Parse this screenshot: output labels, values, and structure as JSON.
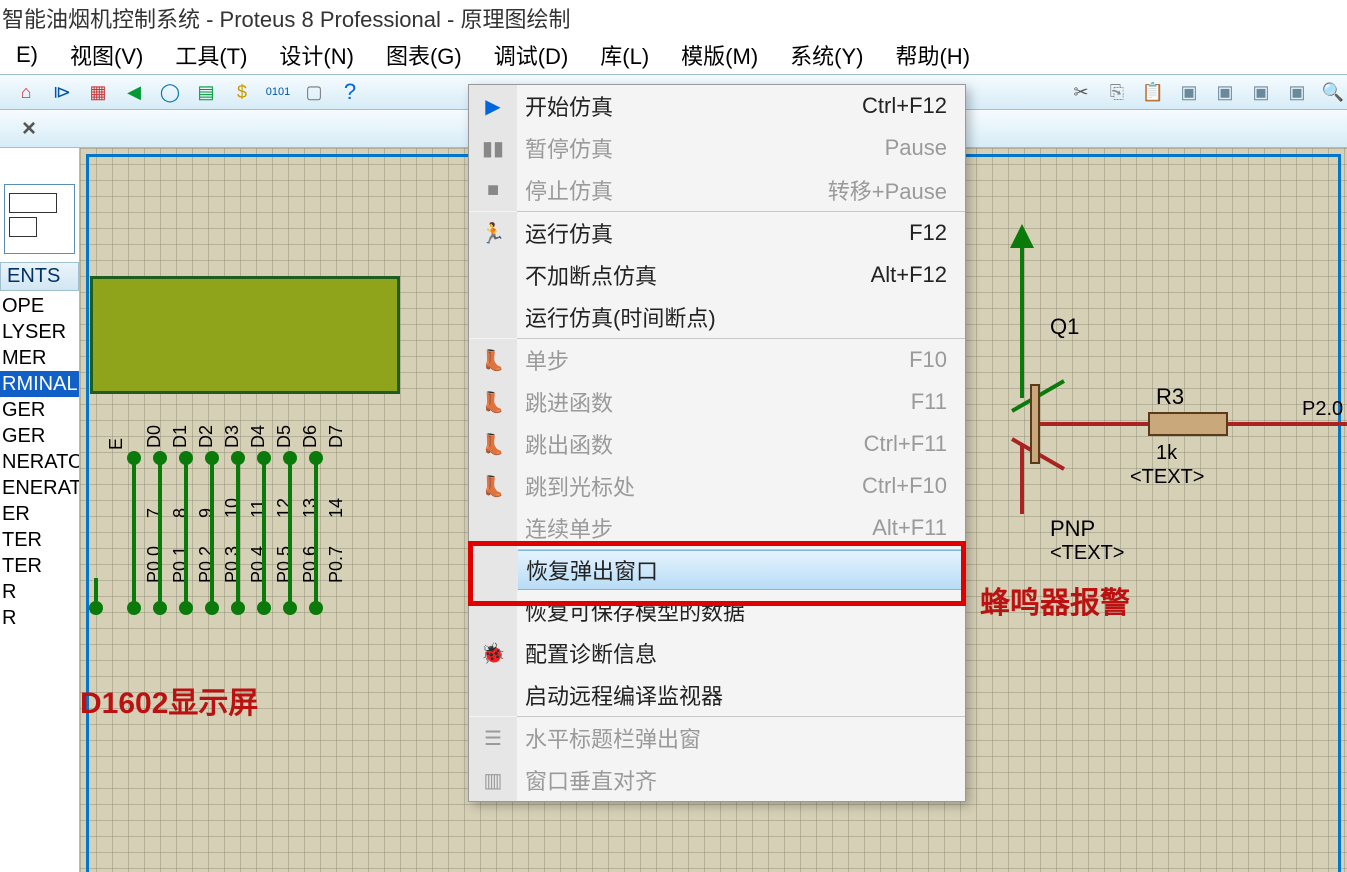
{
  "title": "智能油烟机控制系统 - Proteus 8 Professional - 原理图绘制",
  "menu": {
    "items": [
      "E)",
      "视图(V)",
      "工具(T)",
      "设计(N)",
      "图表(G)",
      "调试(D)",
      "库(L)",
      "模版(M)",
      "系统(Y)",
      "帮助(H)"
    ],
    "active_index": 5
  },
  "toolbar": {
    "left_icons": [
      "home-icon",
      "diode-icon",
      "chip-icon",
      "flag-icon",
      "globe-icon",
      "sheet-icon",
      "dollar-icon",
      "binary-icon",
      "page-icon",
      "help-icon"
    ],
    "right_icons": [
      "cut-icon",
      "copy-icon",
      "paste-icon",
      "block1-icon",
      "block2-icon",
      "block3-icon",
      "block4-icon",
      "zoom-icon"
    ]
  },
  "tab": {
    "close": "×"
  },
  "side": {
    "header": "ENTS",
    "list": [
      "OPE",
      "LYSER",
      "MER",
      "RMINAL",
      "GER",
      "GER",
      "NERATO",
      "ENERAT",
      "ER",
      "TER",
      "TER",
      "R",
      "R"
    ],
    "selected_index": 3
  },
  "lcd": {
    "title": "D1602显示屏",
    "data_pins": [
      "D0",
      "D1",
      "D2",
      "D3",
      "D4",
      "D5",
      "D6",
      "D7"
    ],
    "data_nums": [
      "7",
      "8",
      "9",
      "10",
      "11",
      "12",
      "13",
      "14"
    ],
    "port_pins": [
      "P0.0",
      "P0.1",
      "P0.2",
      "P0.3",
      "P0.4",
      "P0.5",
      "P0.6",
      "P0.7"
    ],
    "extra_pin": "E"
  },
  "dropdown": {
    "groups": [
      [
        {
          "icon": "▶",
          "label": "开始仿真",
          "shortcut": "Ctrl+F12",
          "enabled": true,
          "color": "#0066dd"
        },
        {
          "icon": "▮▮",
          "label": "暂停仿真",
          "shortcut": "Pause",
          "enabled": false,
          "color": "#888"
        },
        {
          "icon": "■",
          "label": "停止仿真",
          "shortcut": "转移+Pause",
          "enabled": false,
          "color": "#888"
        }
      ],
      [
        {
          "icon": "🏃",
          "label": "运行仿真",
          "shortcut": "F12",
          "enabled": true,
          "color": "#cc4400"
        },
        {
          "icon": "",
          "label": "不加断点仿真",
          "shortcut": "Alt+F12",
          "enabled": true
        },
        {
          "icon": "",
          "label": "运行仿真(时间断点)",
          "shortcut": "",
          "enabled": true
        }
      ],
      [
        {
          "icon": "👢",
          "label": "单步",
          "shortcut": "F10",
          "enabled": false
        },
        {
          "icon": "👢",
          "label": "跳进函数",
          "shortcut": "F11",
          "enabled": false
        },
        {
          "icon": "👢",
          "label": "跳出函数",
          "shortcut": "Ctrl+F11",
          "enabled": false
        },
        {
          "icon": "👢",
          "label": "跳到光标处",
          "shortcut": "Ctrl+F10",
          "enabled": false
        },
        {
          "icon": "",
          "label": "连续单步",
          "shortcut": "Alt+F11",
          "enabled": false
        }
      ],
      [
        {
          "icon": "",
          "label": "恢复弹出窗口",
          "shortcut": "",
          "enabled": true,
          "highlight": true
        },
        {
          "icon": "",
          "label": "恢复可保存模型的数据",
          "shortcut": "",
          "enabled": true
        },
        {
          "icon": "🐞",
          "label": "配置诊断信息",
          "shortcut": "",
          "enabled": true,
          "color": "#8800aa"
        },
        {
          "icon": "",
          "label": "启动远程编译监视器",
          "shortcut": "",
          "enabled": true
        }
      ],
      [
        {
          "icon": "☰",
          "label": "水平标题栏弹出窗",
          "shortcut": "",
          "enabled": false
        },
        {
          "icon": "▥",
          "label": "窗口垂直对齐",
          "shortcut": "",
          "enabled": false
        }
      ]
    ]
  },
  "circuit": {
    "q_label": "Q1",
    "r_label": "R3",
    "r_val": "1k",
    "text_ph": "<TEXT>",
    "pnp": "PNP",
    "port": "P2.0",
    "alarm": "蜂鸣器报警"
  }
}
